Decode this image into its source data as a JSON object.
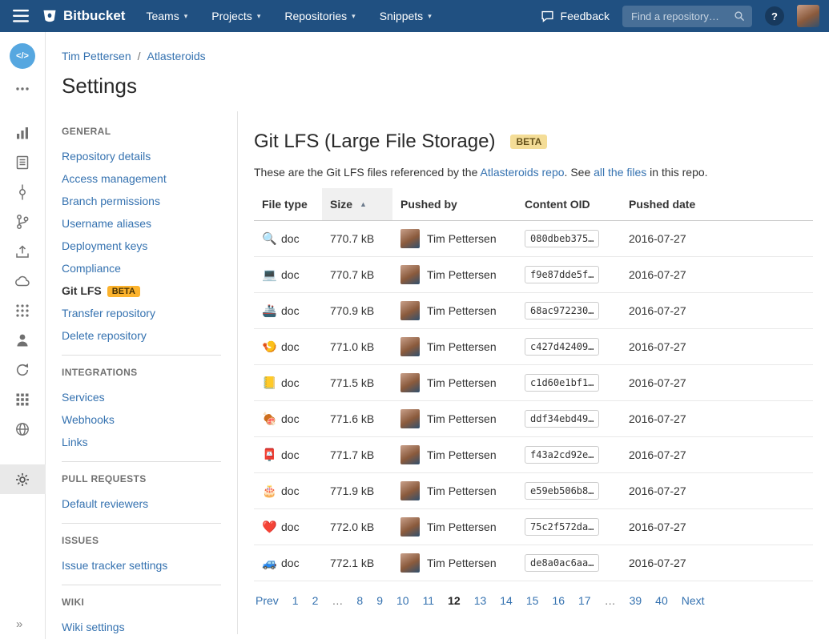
{
  "colors": {
    "navbar": "#205081",
    "link": "#3572b0",
    "badge-bg": "#fcb32d",
    "badge-text": "#453004",
    "title-badge-bg": "#f4dd97",
    "title-badge-text": "#66521b"
  },
  "navbar": {
    "brand": "Bitbucket",
    "menus": [
      {
        "label": "Teams"
      },
      {
        "label": "Projects"
      },
      {
        "label": "Repositories"
      },
      {
        "label": "Snippets"
      }
    ],
    "feedback_label": "Feedback",
    "search_placeholder": "Find a repository…",
    "help_label": "?"
  },
  "rail": {
    "items": [
      {
        "name": "code-avatar",
        "kind": "code"
      },
      {
        "name": "more-icon",
        "kind": "more"
      },
      {
        "name": "stats-icon",
        "kind": "stats"
      },
      {
        "name": "source-icon",
        "kind": "source"
      },
      {
        "name": "commits-icon",
        "kind": "commits"
      },
      {
        "name": "branches-icon",
        "kind": "branches"
      },
      {
        "name": "deployments-icon",
        "kind": "deployments"
      },
      {
        "name": "pipelines-icon",
        "kind": "cloud"
      },
      {
        "name": "downloads-icon",
        "kind": "grid-dots"
      },
      {
        "name": "members-icon",
        "kind": "people"
      },
      {
        "name": "sync-icon",
        "kind": "sync"
      },
      {
        "name": "apps-icon",
        "kind": "grid-squares"
      },
      {
        "name": "globe-icon",
        "kind": "globe"
      },
      {
        "name": "settings-icon",
        "kind": "gear",
        "active": true
      }
    ],
    "expand": "»"
  },
  "breadcrumb": {
    "user": "Tim Pettersen",
    "separator": "/",
    "repo": "Atlasteroids"
  },
  "page_title": "Settings",
  "sidebar": {
    "sections": [
      {
        "heading": "GENERAL",
        "items": [
          {
            "label": "Repository details"
          },
          {
            "label": "Access management"
          },
          {
            "label": "Branch permissions"
          },
          {
            "label": "Username aliases"
          },
          {
            "label": "Deployment keys"
          },
          {
            "label": "Compliance"
          },
          {
            "label": "Git LFS",
            "badge": "BETA",
            "active": true
          },
          {
            "label": "Transfer repository"
          },
          {
            "label": "Delete repository"
          }
        ]
      },
      {
        "heading": "INTEGRATIONS",
        "items": [
          {
            "label": "Services"
          },
          {
            "label": "Webhooks"
          },
          {
            "label": "Links"
          }
        ]
      },
      {
        "heading": "PULL REQUESTS",
        "items": [
          {
            "label": "Default reviewers"
          }
        ]
      },
      {
        "heading": "ISSUES",
        "items": [
          {
            "label": "Issue tracker settings"
          }
        ]
      },
      {
        "heading": "WIKI",
        "items": [
          {
            "label": "Wiki settings"
          }
        ]
      }
    ]
  },
  "main": {
    "title": "Git LFS (Large File Storage)",
    "title_badge": "BETA",
    "intro": {
      "pre": "These are the Git LFS files referenced by the ",
      "link1": "Atlasteroids repo",
      "mid": ". See ",
      "link2": "all the files",
      "post": " in this repo."
    },
    "table": {
      "columns": [
        "File type",
        "Size",
        "Pushed by",
        "Content OID",
        "Pushed date"
      ],
      "sort_column": "Size",
      "sort_indicator": "▲",
      "rows": [
        {
          "icon": "🔍",
          "type": "doc",
          "size": "770.7 kB",
          "pushed_by": "Tim Pettersen",
          "oid": "080dbeb375…",
          "date": "2016-07-27"
        },
        {
          "icon": "💻",
          "type": "doc",
          "size": "770.7 kB",
          "pushed_by": "Tim Pettersen",
          "oid": "f9e87dde5f…",
          "date": "2016-07-27"
        },
        {
          "icon": "🚢",
          "type": "doc",
          "size": "770.9 kB",
          "pushed_by": "Tim Pettersen",
          "oid": "68ac972230…",
          "date": "2016-07-27"
        },
        {
          "icon": "🍤",
          "type": "doc",
          "size": "771.0 kB",
          "pushed_by": "Tim Pettersen",
          "oid": "c427d42409…",
          "date": "2016-07-27"
        },
        {
          "icon": "📒",
          "type": "doc",
          "size": "771.5 kB",
          "pushed_by": "Tim Pettersen",
          "oid": "c1d60e1bf1…",
          "date": "2016-07-27"
        },
        {
          "icon": "🍖",
          "type": "doc",
          "size": "771.6 kB",
          "pushed_by": "Tim Pettersen",
          "oid": "ddf34ebd49…",
          "date": "2016-07-27"
        },
        {
          "icon": "📮",
          "type": "doc",
          "size": "771.7 kB",
          "pushed_by": "Tim Pettersen",
          "oid": "f43a2cd92e…",
          "date": "2016-07-27"
        },
        {
          "icon": "🎂",
          "type": "doc",
          "size": "771.9 kB",
          "pushed_by": "Tim Pettersen",
          "oid": "e59eb506b8…",
          "date": "2016-07-27"
        },
        {
          "icon": "❤️",
          "type": "doc",
          "size": "772.0 kB",
          "pushed_by": "Tim Pettersen",
          "oid": "75c2f572da…",
          "date": "2016-07-27"
        },
        {
          "icon": "🚙",
          "type": "doc",
          "size": "772.1 kB",
          "pushed_by": "Tim Pettersen",
          "oid": "de8a0ac6aa…",
          "date": "2016-07-27"
        }
      ]
    },
    "pagination": {
      "items": [
        {
          "label": "Prev",
          "type": "link"
        },
        {
          "label": "1",
          "type": "link"
        },
        {
          "label": "2",
          "type": "link"
        },
        {
          "label": "…",
          "type": "ellipsis"
        },
        {
          "label": "8",
          "type": "link"
        },
        {
          "label": "9",
          "type": "link"
        },
        {
          "label": "10",
          "type": "link"
        },
        {
          "label": "11",
          "type": "link"
        },
        {
          "label": "12",
          "type": "current"
        },
        {
          "label": "13",
          "type": "link"
        },
        {
          "label": "14",
          "type": "link"
        },
        {
          "label": "15",
          "type": "link"
        },
        {
          "label": "16",
          "type": "link"
        },
        {
          "label": "17",
          "type": "link"
        },
        {
          "label": "…",
          "type": "ellipsis"
        },
        {
          "label": "39",
          "type": "link"
        },
        {
          "label": "40",
          "type": "link"
        },
        {
          "label": "Next",
          "type": "link"
        }
      ]
    }
  }
}
